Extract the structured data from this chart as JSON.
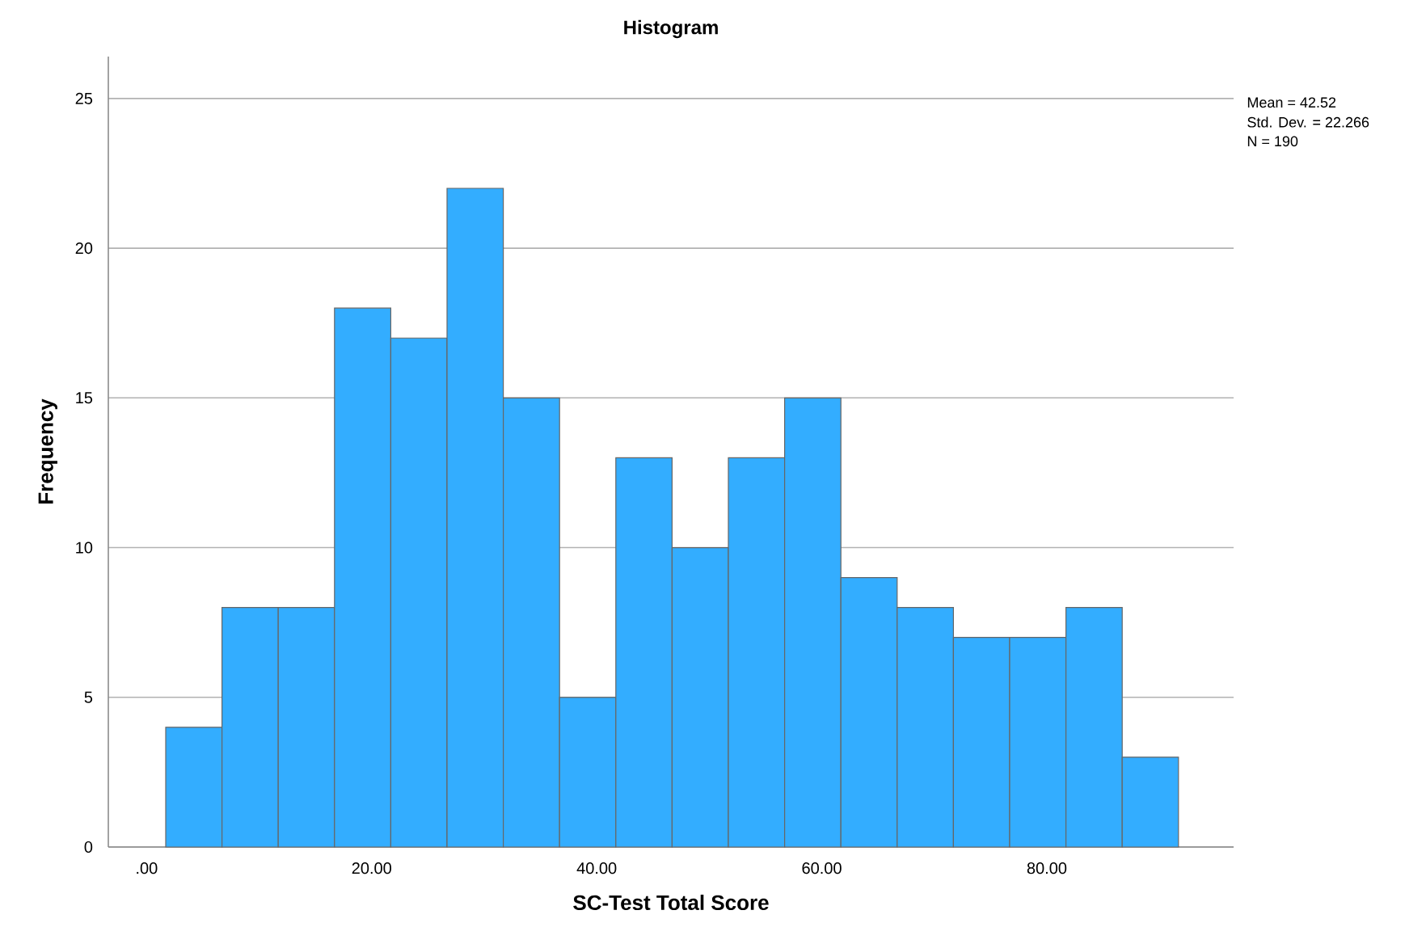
{
  "chart_data": {
    "type": "histogram",
    "title": "Histogram",
    "xlabel": "SC-Test Total Score",
    "ylabel": "Frequency",
    "annotations": [
      "Mean = 42.52",
      "Std. Dev. = 22.266",
      "N = 190"
    ],
    "bins": [
      1.7,
      6.7,
      11.7,
      16.7,
      21.7,
      26.7,
      31.7,
      36.7,
      41.7,
      46.7,
      51.7,
      56.7,
      61.7,
      66.7,
      71.7,
      76.7,
      81.7,
      86.7,
      91.7
    ],
    "values": [
      4,
      8,
      8,
      18,
      17,
      22,
      15,
      5,
      13,
      10,
      13,
      15,
      9,
      8,
      7,
      7,
      8,
      3
    ],
    "color": "#33adff",
    "xlim": [
      -3.4,
      96.6
    ],
    "ylim": [
      0,
      26.4
    ],
    "xticks": [
      {
        "value": 0,
        "label": ".00"
      },
      {
        "value": 20,
        "label": "20.00"
      },
      {
        "value": 40,
        "label": "40.00"
      },
      {
        "value": 60,
        "label": "60.00"
      },
      {
        "value": 80,
        "label": "80.00"
      }
    ],
    "yticks": [
      0,
      5,
      10,
      15,
      20,
      25
    ],
    "grid": "y"
  }
}
